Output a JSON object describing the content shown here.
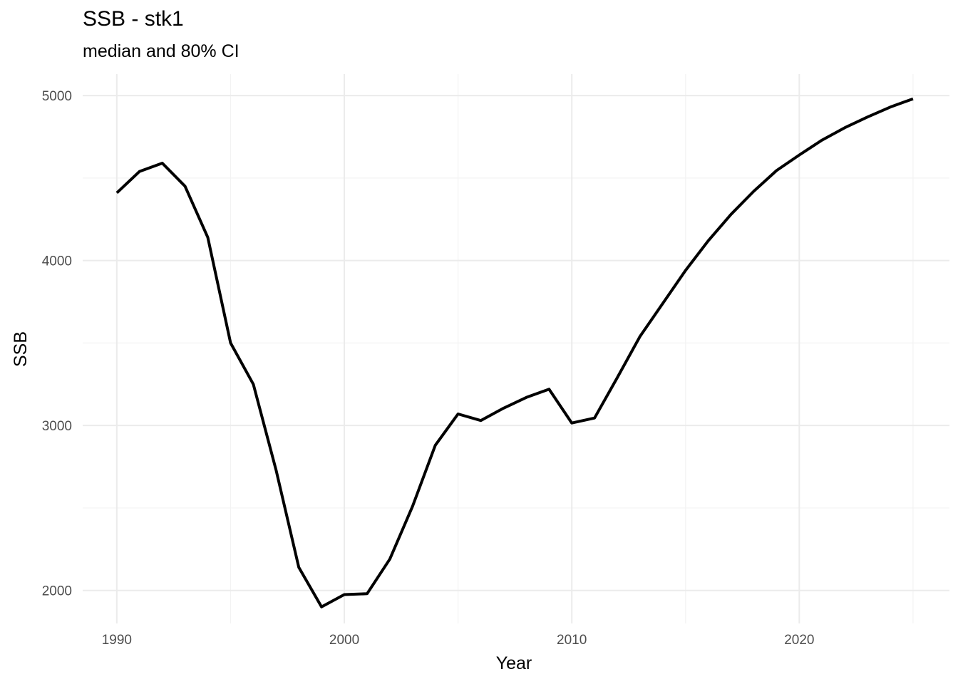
{
  "chart_data": {
    "type": "line",
    "title": "SSB - stk1",
    "subtitle": "median and 80% CI",
    "xlabel": "Year",
    "ylabel": "SSB",
    "xlim": [
      1988.5,
      2026.6
    ],
    "ylim": [
      1800,
      5130
    ],
    "x_ticks": [
      1990,
      2000,
      2010,
      2020
    ],
    "y_ticks": [
      2000,
      3000,
      4000,
      5000
    ],
    "grid": true,
    "legend": "none",
    "line_color": "#000000",
    "series": [
      {
        "x": [
          1990,
          1991,
          1992,
          1993,
          1994,
          1995,
          1996,
          1997,
          1998,
          1999,
          2000,
          2001,
          2002,
          2003,
          2004,
          2005,
          2006,
          2007,
          2008,
          2009,
          2010,
          2011,
          2012,
          2013,
          2014,
          2015,
          2016,
          2017,
          2018,
          2019,
          2020,
          2021,
          2022,
          2023,
          2024,
          2025
        ],
        "values": [
          4410,
          4540,
          4590,
          4450,
          4140,
          3500,
          3250,
          2730,
          2140,
          1900,
          1975,
          1980,
          2190,
          2510,
          2880,
          3070,
          3030,
          3105,
          3170,
          3220,
          3015,
          3045,
          3290,
          3540,
          3740,
          3940,
          4120,
          4280,
          4420,
          4545,
          4640,
          4730,
          4805,
          4870,
          4930,
          4980
        ]
      }
    ]
  }
}
